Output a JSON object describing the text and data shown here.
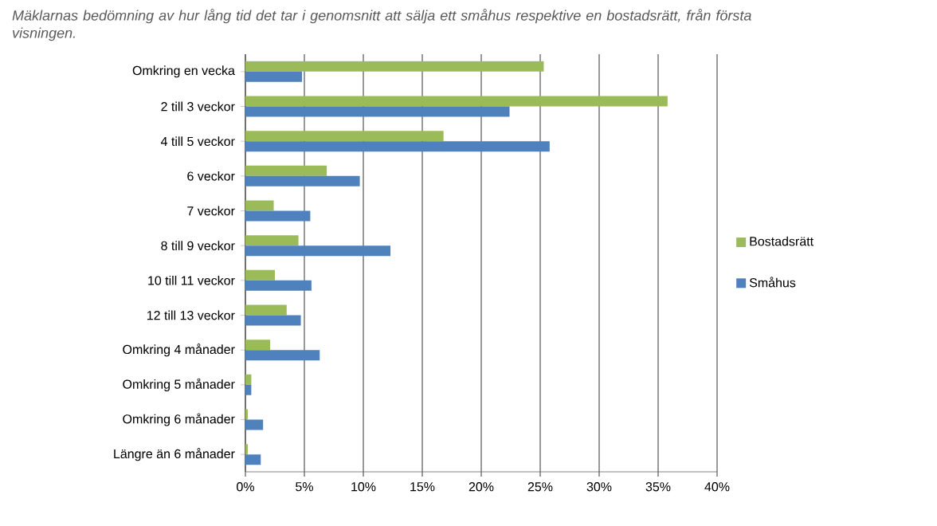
{
  "chart_data": {
    "type": "bar",
    "orientation": "horizontal",
    "title": "Mäklarnas bedömning av hur lång tid det tar i genomsnitt att sälja ett småhus respektive en bostadsrätt, från första visningen.",
    "categories": [
      "Omkring en vecka",
      "2 till 3 veckor",
      "4 till 5 veckor",
      "6 veckor",
      "7 veckor",
      "8 till 9 veckor",
      "10 till 11 veckor",
      "12 till 13 veckor",
      "Omkring 4 månader",
      "Omkring 5 månader",
      "Omkring 6 månader",
      "Längre än 6 månader"
    ],
    "series": [
      {
        "name": "Bostadsrätt",
        "color": "#9bbb59",
        "values": [
          25.3,
          35.8,
          16.8,
          6.9,
          2.4,
          4.5,
          2.5,
          3.5,
          2.1,
          0.5,
          0.2,
          0.2
        ]
      },
      {
        "name": "Småhus",
        "color": "#4f81bd",
        "values": [
          4.8,
          22.4,
          25.8,
          9.7,
          5.5,
          12.3,
          5.6,
          4.7,
          6.3,
          0.5,
          1.5,
          1.3
        ]
      }
    ],
    "xlim": [
      0,
      40
    ],
    "xticks": [
      {
        "value": 0,
        "label": "0%"
      },
      {
        "value": 5,
        "label": "5%"
      },
      {
        "value": 10,
        "label": "10%"
      },
      {
        "value": 15,
        "label": "15%"
      },
      {
        "value": 20,
        "label": "20%"
      },
      {
        "value": 25,
        "label": "25%"
      },
      {
        "value": 30,
        "label": "30%"
      },
      {
        "value": 35,
        "label": "35%"
      },
      {
        "value": 40,
        "label": "40%"
      }
    ],
    "grid": "x",
    "legend": "right"
  }
}
